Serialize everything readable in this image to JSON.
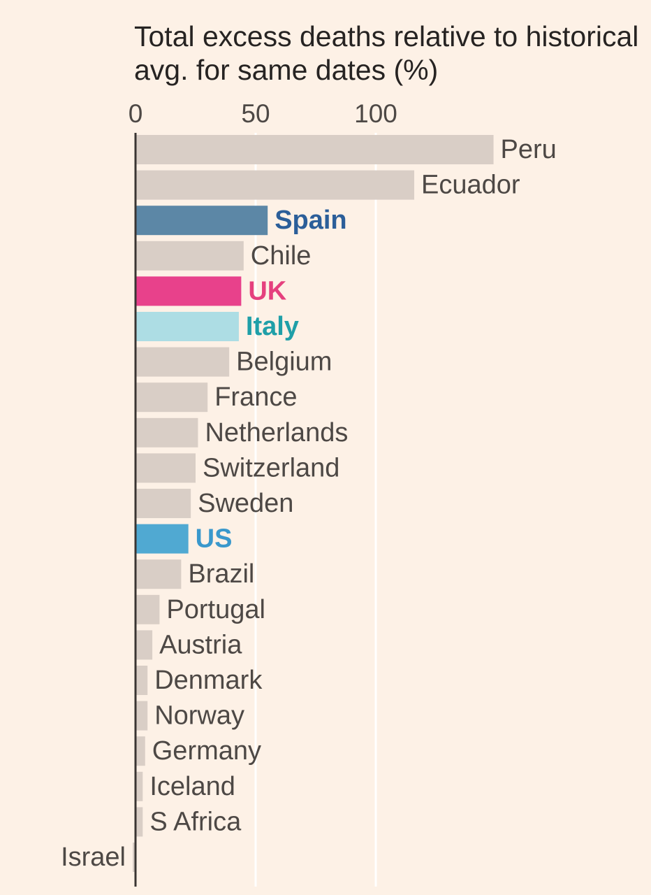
{
  "chart_data": {
    "type": "bar",
    "orientation": "horizontal",
    "title": "Total excess deaths relative to historical avg. for same dates (%)",
    "xlabel": "",
    "ylabel": "",
    "xlim": [
      0,
      150
    ],
    "xticks": [
      0,
      50,
      100
    ],
    "grid": true,
    "legend": "none",
    "categories": [
      "Peru",
      "Ecuador",
      "Spain",
      "Chile",
      "UK",
      "Italy",
      "Belgium",
      "France",
      "Netherlands",
      "Switzerland",
      "Sweden",
      "US",
      "Brazil",
      "Portugal",
      "Austria",
      "Denmark",
      "Norway",
      "Germany",
      "Iceland",
      "S Africa",
      "Israel"
    ],
    "values": [
      149,
      116,
      55,
      45,
      44,
      43,
      39,
      30,
      26,
      25,
      23,
      22,
      19,
      10,
      7,
      5,
      5,
      4,
      3,
      3,
      -1
    ],
    "colors": {
      "default_bar": "#d9cec6",
      "Spain": "#5c87a6",
      "UK": "#e8418b",
      "Italy": "#addde4",
      "US": "#50a9d2"
    },
    "label_colors": {
      "default": "#4d4845",
      "Spain": "#2b5e99",
      "UK": "#e5407e",
      "Italy": "#1f9fa8",
      "US": "#3a98cc"
    },
    "highlighted": [
      "Spain",
      "UK",
      "Italy",
      "US"
    ]
  }
}
